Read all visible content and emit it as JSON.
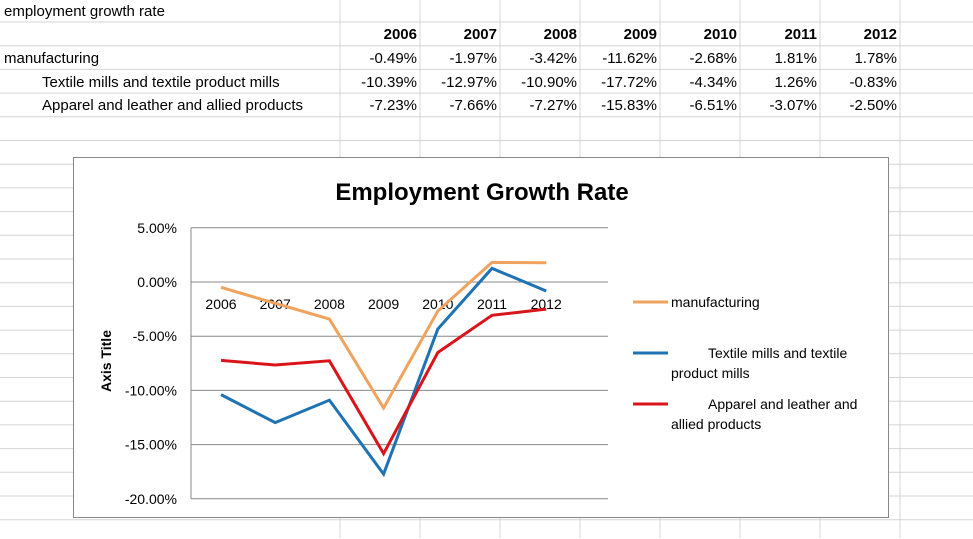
{
  "sheet": {
    "title": "employment growth rate",
    "years": [
      "2006",
      "2007",
      "2008",
      "2009",
      "2010",
      "2011",
      "2012"
    ],
    "rows": [
      {
        "label": "manufacturing",
        "indent": false,
        "values": [
          "-0.49%",
          "-1.97%",
          "-3.42%",
          "-11.62%",
          "-2.68%",
          "1.81%",
          "1.78%"
        ]
      },
      {
        "label": "Textile mills and textile product mills",
        "indent": true,
        "values": [
          "-10.39%",
          "-12.97%",
          "-10.90%",
          "-17.72%",
          "-4.34%",
          "1.26%",
          "-0.83%"
        ]
      },
      {
        "label": "Apparel and leather and allied products",
        "indent": true,
        "values": [
          "-7.23%",
          "-7.66%",
          "-7.27%",
          "-15.83%",
          "-6.51%",
          "-3.07%",
          "-2.50%"
        ]
      }
    ]
  },
  "chart_data": {
    "type": "line",
    "title": "Employment Growth Rate",
    "xlabel": "",
    "ylabel": "Axis Title",
    "categories": [
      "2006",
      "2007",
      "2008",
      "2009",
      "2010",
      "2011",
      "2012"
    ],
    "ylim": [
      -20,
      5
    ],
    "yticks": [
      "5.00%",
      "0.00%",
      "-5.00%",
      "-10.00%",
      "-15.00%",
      "-20.00%"
    ],
    "grid": true,
    "legend_position": "right",
    "series": [
      {
        "name": "manufacturing",
        "color": "#f0a35e",
        "values": [
          -0.49,
          -1.97,
          -3.42,
          -11.62,
          -2.68,
          1.81,
          1.78
        ]
      },
      {
        "name": "Textile mills and textile product mills",
        "color": "#1f73b5",
        "values": [
          -10.39,
          -12.97,
          -10.9,
          -17.72,
          -4.34,
          1.26,
          -0.83
        ]
      },
      {
        "name": "Apparel and leather and allied products",
        "color": "#d9151b",
        "values": [
          -7.23,
          -7.66,
          -7.27,
          -15.83,
          -6.51,
          -3.07,
          -2.5
        ]
      }
    ]
  }
}
